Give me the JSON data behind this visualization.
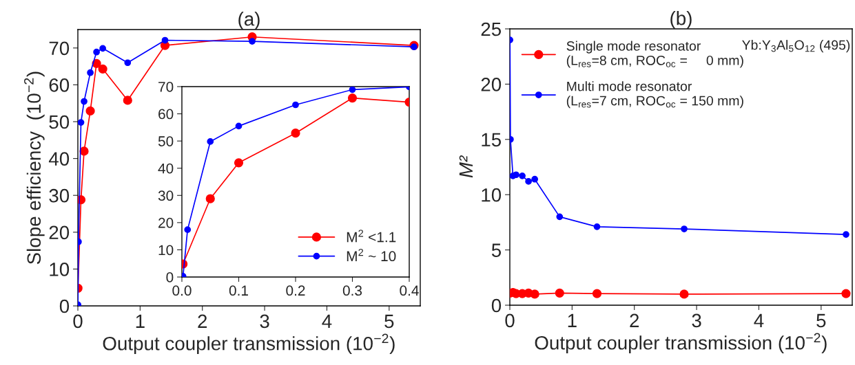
{
  "chart_data": [
    {
      "type": "line",
      "title": "(a)",
      "xlabel": "Output coupler transmission (10$^{−2}$)",
      "ylabel": "Slope efficiency  (10$^{−2}$)",
      "xlim": [
        0,
        5.5
      ],
      "ylim": [
        0,
        75
      ],
      "xticks": [
        0,
        1,
        2,
        3,
        4,
        5
      ],
      "yticks": [
        0,
        10,
        20,
        30,
        40,
        50,
        60,
        70
      ],
      "grid": false,
      "legend": false,
      "marker": "circle",
      "line_style": "solid",
      "series": [
        {
          "color": "#ff0000",
          "x": [
            0.002,
            0.05,
            0.1,
            0.2,
            0.3,
            0.4,
            0.8,
            1.4,
            2.8,
            5.4
          ],
          "values": [
            4.8,
            28.8,
            42,
            52.9,
            65.8,
            64.3,
            55.8,
            70.7,
            73,
            70.7
          ]
        },
        {
          "color": "#0000ff",
          "x": [
            0.002,
            0.01,
            0.05,
            0.1,
            0.2,
            0.3,
            0.4,
            0.8,
            1.4,
            2.8,
            5.4
          ],
          "values": [
            0.3,
            17.4,
            49.8,
            55.5,
            63.3,
            68.9,
            69.9,
            66,
            72.1,
            71.8,
            70.3
          ]
        }
      ]
    },
    {
      "type": "line",
      "xlim": [
        0,
        0.4
      ],
      "ylim": [
        0,
        70
      ],
      "xticks": [
        {
          "value": 0,
          "label": "0.0"
        },
        0.1,
        0.2,
        0.3,
        0.4
      ],
      "yticks": [
        0,
        10,
        20,
        30,
        40,
        50,
        60,
        70
      ],
      "grid": false,
      "legend": "bottom right",
      "marker": "circle",
      "line_style": "solid",
      "series": [
        {
          "name": "M$^{2}$ <1.1",
          "color": "#ff0000",
          "x": [
            0.002,
            0.05,
            0.1,
            0.2,
            0.3,
            0.4
          ],
          "values": [
            4.8,
            28.8,
            42,
            52.9,
            65.8,
            64.3
          ]
        },
        {
          "name": "M$^{2}$ ~ 10",
          "color": "#0000ff",
          "x": [
            0.002,
            0.01,
            0.05,
            0.1,
            0.2,
            0.3,
            0.4
          ],
          "values": [
            0.3,
            17.4,
            49.8,
            55.5,
            63.3,
            68.9,
            69.9
          ]
        }
      ]
    },
    {
      "type": "line",
      "title": "(b)",
      "xlabel": "Output coupler transmission (10$^{−2}$)",
      "ylabel": "M²",
      "xlim": [
        0,
        5.5
      ],
      "ylim": [
        0,
        25
      ],
      "xticks": [
        0,
        1,
        2,
        3,
        4,
        5
      ],
      "yticks": [
        0,
        5,
        10,
        15,
        20,
        25
      ],
      "grid": false,
      "legend": "top left",
      "marker": "circle",
      "line_style": "solid",
      "annotations": [
        "Yb:Y$_{3}$Al$_{5}$O$_{12}$ (495)"
      ],
      "series": [
        {
          "name": "Single mode resonator\n(L$_{res}$=8 cm, ROC$_{oc}$ =     0 mm)",
          "color": "#ff0000",
          "x": [
            0.002,
            0.05,
            0.1,
            0.2,
            0.3,
            0.4,
            0.8,
            1.4,
            2.8,
            5.4
          ],
          "values": [
            1.1,
            1.15,
            1.05,
            1.05,
            1.1,
            1.0,
            1.1,
            1.05,
            1.0,
            1.05
          ]
        },
        {
          "name": "Multi mode resonator\n(L$_{res}$=7 cm, ROC$_{oc}$ = 150 mm)",
          "color": "#0000ff",
          "x": [
            0.002,
            0.01,
            0.05,
            0.1,
            0.2,
            0.3,
            0.4,
            0.8,
            1.4,
            2.8,
            5.4
          ],
          "values": [
            24,
            15,
            11.7,
            11.8,
            11.7,
            11.2,
            11.4,
            8.0,
            7.1,
            6.9,
            6.4
          ]
        }
      ]
    }
  ]
}
